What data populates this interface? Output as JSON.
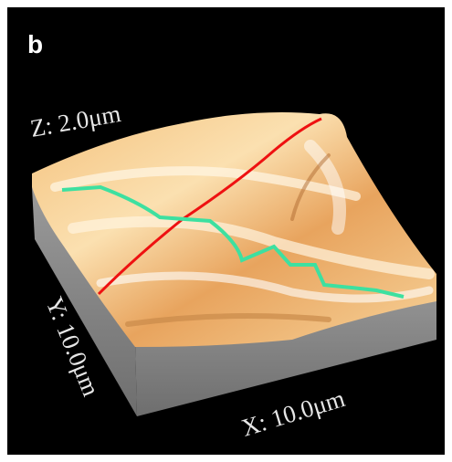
{
  "panel_label": "b",
  "axes": {
    "z": "Z: 2.0μm",
    "y": "Y: 10.0μm",
    "x": "X: 10.0μm"
  }
}
